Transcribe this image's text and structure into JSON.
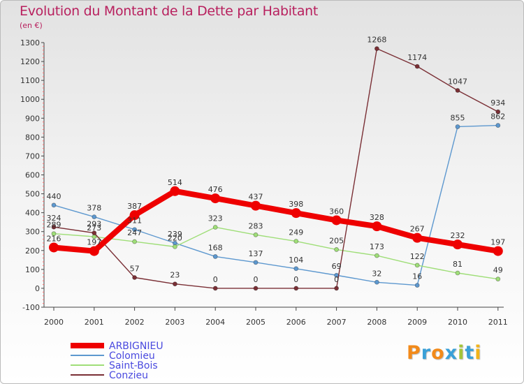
{
  "title": "Evolution du Montant de la Dette par Habitant",
  "subtitle": "(en €)",
  "logo": {
    "text": "Proxiti",
    "colors": [
      "#f28a1a",
      "#3aa0d8",
      "#f28a1a",
      "#3aa0d8",
      "#a4c43a",
      "#3aa0d8",
      "#f2b31a"
    ]
  },
  "chart_data": {
    "type": "line",
    "x": [
      "2000",
      "2001",
      "2002",
      "2003",
      "2004",
      "2005",
      "2006",
      "2007",
      "2008",
      "2009",
      "2010",
      "2011"
    ],
    "ylim": [
      -100,
      1300
    ],
    "yticks": [
      -100,
      0,
      100,
      200,
      300,
      400,
      500,
      600,
      700,
      800,
      900,
      1000,
      1100,
      1200,
      1300
    ],
    "grid": false,
    "legend_position": "bottom-left",
    "series": [
      {
        "name": "ARBIGNIEU",
        "color": "#ee0000",
        "bold": true,
        "values": [
          216,
          197,
          387,
          514,
          476,
          437,
          398,
          360,
          328,
          267,
          232,
          197
        ]
      },
      {
        "name": "Colomieu",
        "color": "#5d98cf",
        "values": [
          440,
          378,
          311,
          239,
          168,
          137,
          104,
          69,
          32,
          16,
          855,
          862
        ]
      },
      {
        "name": "Saint-Bois",
        "color": "#9fde78",
        "values": [
          289,
          273,
          247,
          220,
          323,
          283,
          249,
          205,
          173,
          122,
          81,
          49
        ]
      },
      {
        "name": "Conzieu",
        "color": "#7a2f35",
        "values": [
          324,
          293,
          57,
          23,
          0,
          0,
          0,
          0,
          1268,
          1174,
          1047,
          934
        ]
      }
    ]
  }
}
